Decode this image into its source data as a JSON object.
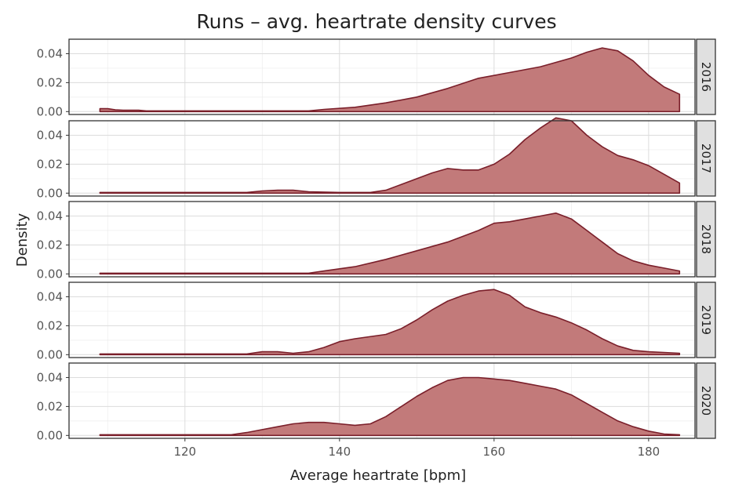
{
  "chart_data": {
    "type": "area",
    "title": "Runs – avg. heartrate density curves",
    "xlabel": "Average heartrate [bpm]",
    "ylabel": "Density",
    "xlim": [
      105,
      186
    ],
    "ylim": [
      -0.002,
      0.05
    ],
    "x_ticks": [
      120,
      140,
      160,
      180
    ],
    "x_tick_labels": [
      "120",
      "140",
      "160",
      "180"
    ],
    "y_ticks": [
      0,
      0.02,
      0.04
    ],
    "y_tick_labels": [
      "0.00",
      "0.02",
      "0.04"
    ],
    "grid": true,
    "fill_color": "#c27a7a",
    "line_color": "#7a1f2a",
    "panels": [
      {
        "label": "2016",
        "x": [
          109,
          110,
          111,
          112,
          114,
          115,
          120,
          130,
          136,
          138,
          142,
          146,
          150,
          154,
          158,
          162,
          166,
          170,
          172,
          174,
          176,
          178,
          180,
          182,
          184
        ],
        "y": [
          0.002,
          0.002,
          0.0012,
          0.001,
          0.001,
          0.0005,
          0.0005,
          0.0005,
          0.0005,
          0.0015,
          0.003,
          0.006,
          0.01,
          0.016,
          0.023,
          0.027,
          0.031,
          0.037,
          0.041,
          0.044,
          0.042,
          0.035,
          0.025,
          0.017,
          0.012
        ]
      },
      {
        "label": "2017",
        "x": [
          109,
          120,
          128,
          130,
          132,
          134,
          136,
          140,
          144,
          146,
          148,
          152,
          154,
          156,
          158,
          160,
          162,
          164,
          166,
          168,
          170,
          172,
          174,
          176,
          178,
          180,
          182,
          184
        ],
        "y": [
          0.0005,
          0.0005,
          0.0005,
          0.0015,
          0.002,
          0.002,
          0.001,
          0.0005,
          0.0005,
          0.002,
          0.006,
          0.014,
          0.017,
          0.016,
          0.016,
          0.02,
          0.027,
          0.037,
          0.045,
          0.052,
          0.05,
          0.04,
          0.032,
          0.026,
          0.023,
          0.019,
          0.013,
          0.007
        ]
      },
      {
        "label": "2018",
        "x": [
          109,
          120,
          130,
          136,
          138,
          142,
          146,
          150,
          154,
          158,
          160,
          162,
          164,
          166,
          168,
          170,
          172,
          174,
          176,
          178,
          180,
          182,
          184
        ],
        "y": [
          0.0005,
          0.0005,
          0.0005,
          0.0005,
          0.002,
          0.005,
          0.01,
          0.016,
          0.022,
          0.03,
          0.035,
          0.036,
          0.038,
          0.04,
          0.042,
          0.038,
          0.03,
          0.022,
          0.014,
          0.009,
          0.006,
          0.004,
          0.002
        ]
      },
      {
        "label": "2019",
        "x": [
          109,
          120,
          128,
          130,
          132,
          134,
          136,
          138,
          140,
          142,
          146,
          148,
          150,
          152,
          154,
          156,
          158,
          160,
          162,
          164,
          166,
          168,
          170,
          172,
          174,
          176,
          178,
          180,
          184
        ],
        "y": [
          0.0005,
          0.0005,
          0.0005,
          0.002,
          0.002,
          0.001,
          0.002,
          0.005,
          0.009,
          0.011,
          0.014,
          0.018,
          0.024,
          0.031,
          0.037,
          0.041,
          0.044,
          0.045,
          0.041,
          0.033,
          0.029,
          0.026,
          0.022,
          0.017,
          0.011,
          0.006,
          0.003,
          0.002,
          0.001
        ]
      },
      {
        "label": "2020",
        "x": [
          109,
          120,
          126,
          128,
          130,
          132,
          134,
          136,
          138,
          140,
          142,
          144,
          146,
          148,
          150,
          152,
          154,
          156,
          158,
          160,
          162,
          164,
          166,
          168,
          170,
          172,
          174,
          176,
          178,
          180,
          182,
          184
        ],
        "y": [
          0.0005,
          0.0005,
          0.0005,
          0.002,
          0.004,
          0.006,
          0.008,
          0.009,
          0.009,
          0.008,
          0.007,
          0.008,
          0.013,
          0.02,
          0.027,
          0.033,
          0.038,
          0.04,
          0.04,
          0.039,
          0.038,
          0.036,
          0.034,
          0.032,
          0.028,
          0.022,
          0.016,
          0.01,
          0.006,
          0.003,
          0.001,
          0.0005
        ]
      }
    ]
  }
}
